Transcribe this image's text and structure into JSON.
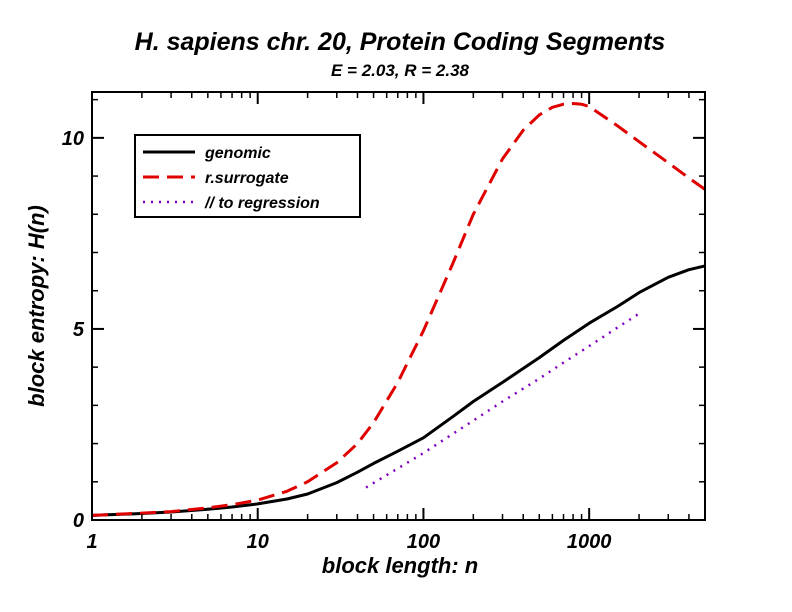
{
  "chart_data": {
    "type": "line",
    "title": "H. sapiens chr. 20, Protein Coding Segments",
    "subtitle": "E = 2.03, R = 2.38",
    "xlabel": "block length: n",
    "ylabel": "block entropy: H(n)",
    "x_scale": "log",
    "xlim": [
      1,
      5000
    ],
    "ylim": [
      0,
      11.2
    ],
    "x_ticks": [
      {
        "value": 1,
        "label": "1"
      },
      {
        "value": 10,
        "label": "10"
      },
      {
        "value": 100,
        "label": "100"
      },
      {
        "value": 1000,
        "label": "1000"
      }
    ],
    "y_ticks": [
      {
        "value": 0,
        "label": "0"
      },
      {
        "value": 5,
        "label": "5"
      },
      {
        "value": 10,
        "label": "10"
      }
    ],
    "grid": false,
    "legend_position": "top-left",
    "series": [
      {
        "name": "genomic",
        "color": "#000000",
        "style": "solid",
        "x": [
          1,
          2,
          3,
          5,
          7,
          10,
          15,
          20,
          30,
          40,
          50,
          70,
          100,
          150,
          200,
          300,
          500,
          700,
          1000,
          1500,
          2000,
          3000,
          4000,
          5000
        ],
        "y": [
          0.12,
          0.17,
          0.21,
          0.28,
          0.34,
          0.42,
          0.55,
          0.68,
          0.98,
          1.25,
          1.48,
          1.8,
          2.15,
          2.7,
          3.1,
          3.6,
          4.25,
          4.7,
          5.15,
          5.6,
          5.95,
          6.35,
          6.55,
          6.65
        ]
      },
      {
        "name": "r.surrogate",
        "color": "#e00000",
        "style": "dashed",
        "x": [
          1,
          2,
          3,
          5,
          7,
          10,
          15,
          20,
          30,
          40,
          50,
          70,
          100,
          150,
          200,
          300,
          400,
          500,
          600,
          700,
          800,
          900,
          1000,
          1500,
          2000,
          3000,
          4000,
          5000
        ],
        "y": [
          0.12,
          0.18,
          0.22,
          0.32,
          0.4,
          0.52,
          0.75,
          1.0,
          1.5,
          2.0,
          2.55,
          3.6,
          4.95,
          6.7,
          8.0,
          9.45,
          10.2,
          10.6,
          10.8,
          10.88,
          10.9,
          10.88,
          10.82,
          10.3,
          9.9,
          9.35,
          8.95,
          8.65
        ]
      },
      {
        "name": "// to regression",
        "color": "#8000c0",
        "style": "dotted",
        "x": [
          45,
          70,
          100,
          150,
          200,
          300,
          500,
          700,
          1000,
          1500,
          2000
        ],
        "y": [
          0.85,
          1.35,
          1.75,
          2.25,
          2.6,
          3.1,
          3.7,
          4.12,
          4.55,
          5.05,
          5.4
        ]
      }
    ]
  }
}
